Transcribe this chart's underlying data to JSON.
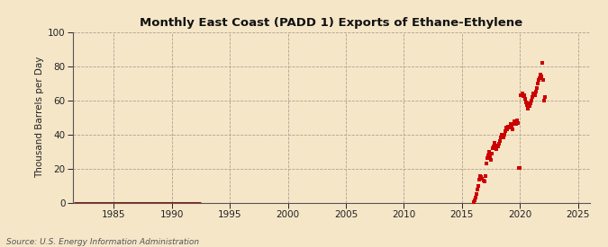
{
  "title": "Monthly East Coast (PADD 1) Exports of Ethane-Ethylene",
  "ylabel": "Thousand Barrels per Day",
  "source": "Source: U.S. Energy Information Administration",
  "background_color": "#f5e6c8",
  "plot_bg_color": "#f5e6c8",
  "line_color": "#8b0000",
  "scatter_color": "#cc0000",
  "xlim": [
    1981.5,
    2026
  ],
  "ylim": [
    0,
    100
  ],
  "yticks": [
    0,
    20,
    40,
    60,
    80,
    100
  ],
  "xticks": [
    1985,
    1990,
    1995,
    2000,
    2005,
    2010,
    2015,
    2020,
    2025
  ],
  "line_data": {
    "x": [
      1981.6,
      1992.5
    ],
    "y": [
      0,
      0
    ]
  },
  "scatter_data": {
    "x": [
      2016.0,
      2016.083,
      2016.167,
      2016.25,
      2016.333,
      2016.417,
      2016.5,
      2016.583,
      2016.667,
      2016.75,
      2016.833,
      2016.917,
      2017.0,
      2017.083,
      2017.167,
      2017.25,
      2017.333,
      2017.417,
      2017.5,
      2017.583,
      2017.667,
      2017.75,
      2017.833,
      2017.917,
      2018.0,
      2018.083,
      2018.167,
      2018.25,
      2018.333,
      2018.417,
      2018.5,
      2018.583,
      2018.667,
      2018.75,
      2018.833,
      2018.917,
      2019.0,
      2019.083,
      2019.167,
      2019.25,
      2019.333,
      2019.417,
      2019.5,
      2019.583,
      2019.667,
      2019.75,
      2019.833,
      2019.917,
      2020.0,
      2020.083,
      2020.167,
      2020.25,
      2020.333,
      2020.417,
      2020.5,
      2020.583,
      2020.667,
      2020.75,
      2020.833,
      2020.917,
      2021.0,
      2021.083,
      2021.167,
      2021.25,
      2021.333,
      2021.417,
      2021.5,
      2021.583,
      2021.667,
      2021.75,
      2021.833,
      2021.917,
      2022.0,
      2022.083,
      2022.167
    ],
    "y": [
      0.3,
      1.5,
      3.0,
      5.0,
      7.5,
      9.5,
      13.5,
      15.5,
      15.0,
      14.0,
      13.0,
      12.5,
      15.5,
      23.0,
      26.0,
      27.5,
      30.0,
      27.0,
      25.0,
      28.5,
      32.0,
      33.0,
      35.0,
      31.5,
      33.5,
      33.0,
      34.5,
      36.0,
      38.0,
      40.0,
      39.0,
      38.0,
      40.0,
      42.0,
      44.0,
      43.0,
      44.5,
      44.0,
      46.0,
      45.0,
      43.0,
      46.0,
      47.5,
      47.0,
      46.0,
      48.0,
      46.5,
      20.5,
      20.5,
      63.0,
      64.0,
      62.5,
      63.0,
      61.0,
      59.0,
      57.0,
      55.0,
      58.0,
      56.5,
      58.0,
      60.0,
      62.0,
      64.0,
      63.0,
      65.0,
      67.0,
      70.0,
      72.0,
      73.0,
      75.0,
      74.0,
      82.0,
      72.0,
      60.0,
      62.0
    ]
  }
}
